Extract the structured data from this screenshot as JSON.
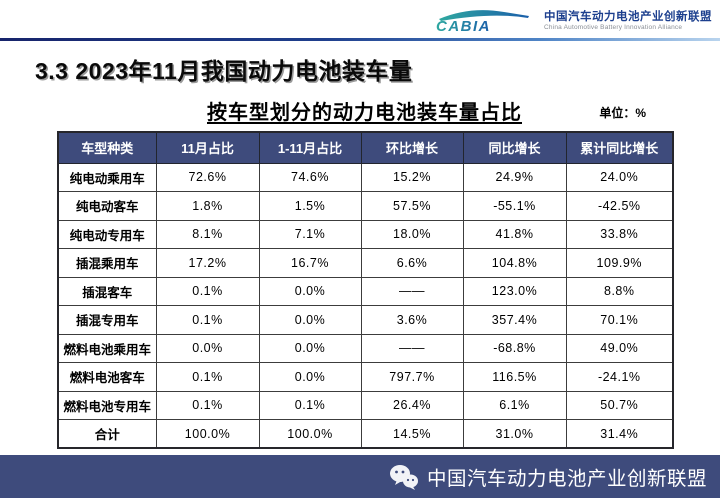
{
  "header": {
    "logo_text": "CABIA",
    "org_name_cn": "中国汽车动力电池产业创新联盟",
    "org_name_en": "China Automotive Battery Innovation Alliance"
  },
  "section_title": "3.3 2023年11月我国动力电池装车量",
  "table_title": "按车型划分的动力电池装车量占比",
  "unit_label": "单位：%",
  "table": {
    "columns": [
      "车型种类",
      "11月占比",
      "1-11月占比",
      "环比增长",
      "同比增长",
      "累计同比增长"
    ],
    "rows": [
      [
        "纯电动乘用车",
        "72.6%",
        "74.6%",
        "15.2%",
        "24.9%",
        "24.0%"
      ],
      [
        "纯电动客车",
        "1.8%",
        "1.5%",
        "57.5%",
        "-55.1%",
        "-42.5%"
      ],
      [
        "纯电动专用车",
        "8.1%",
        "7.1%",
        "18.0%",
        "41.8%",
        "33.8%"
      ],
      [
        "插混乘用车",
        "17.2%",
        "16.7%",
        "6.6%",
        "104.8%",
        "109.9%"
      ],
      [
        "插混客车",
        "0.1%",
        "0.0%",
        "——",
        "123.0%",
        "8.8%"
      ],
      [
        "插混专用车",
        "0.1%",
        "0.0%",
        "3.6%",
        "357.4%",
        "70.1%"
      ],
      [
        "燃料电池乘用车",
        "0.0%",
        "0.0%",
        "——",
        "-68.8%",
        "49.0%"
      ],
      [
        "燃料电池客车",
        "0.1%",
        "0.0%",
        "797.7%",
        "116.5%",
        "-24.1%"
      ],
      [
        "燃料电池专用车",
        "0.1%",
        "0.1%",
        "26.4%",
        "6.1%",
        "50.7%"
      ],
      [
        "合计",
        "100.0%",
        "100.0%",
        "14.5%",
        "31.0%",
        "31.4%"
      ]
    ]
  },
  "footer": {
    "text": "中国汽车动力电池产业创新联盟"
  },
  "colors": {
    "navy": "#3e4b7c",
    "logo_teal": "#2fa8a0",
    "logo_blue": "#1b5faa",
    "org_name_blue": "#1c3f8e"
  }
}
